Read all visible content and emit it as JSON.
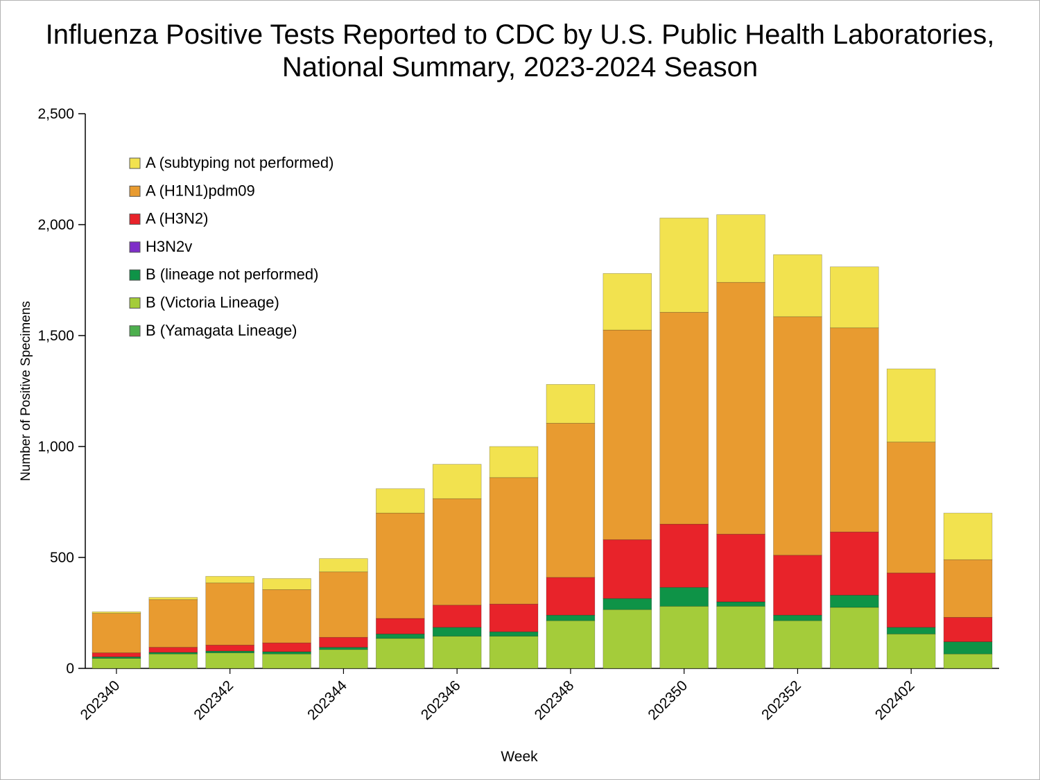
{
  "page": {
    "background": "#ffffff",
    "frame_border_color": "#b3b3b3",
    "axis_color": "#000000",
    "text_color": "#000000"
  },
  "title_lines": [
    "Influenza Positive Tests Reported to CDC by U.S. Public Health Laboratories,",
    "National Summary, 2023-2024 Season"
  ],
  "chart_data": {
    "type": "bar",
    "stacked": true,
    "title": "Influenza Positive Tests Reported to CDC by U.S. Public Health Laboratories, National Summary, 2023-2024 Season",
    "xlabel": "Week",
    "ylabel": "Number of Positive Specimens",
    "ylim": [
      0,
      2500
    ],
    "yticks": [
      0,
      500,
      1000,
      1500,
      2000,
      2500
    ],
    "ytick_labels": [
      "0",
      "500",
      "1,000",
      "1,500",
      "2,000",
      "2,500"
    ],
    "grid": false,
    "legend_position": "upper-left-inside",
    "categories": [
      "202340",
      "202341",
      "202342",
      "202343",
      "202344",
      "202345",
      "202346",
      "202347",
      "202348",
      "202349",
      "202350",
      "202351",
      "202352",
      "202401",
      "202402",
      "202403"
    ],
    "xtick_labels": [
      "202340",
      "202342",
      "202344",
      "202346",
      "202348",
      "202350",
      "202352",
      "202402"
    ],
    "series": [
      {
        "name": "B (Yamagata Lineage)",
        "color": "#4DAF4E",
        "values": [
          0,
          0,
          0,
          0,
          0,
          0,
          0,
          0,
          0,
          0,
          0,
          0,
          0,
          0,
          0,
          0
        ]
      },
      {
        "name": "B (Victoria Lineage)",
        "color": "#A4CC3A",
        "values": [
          45,
          65,
          70,
          65,
          85,
          135,
          145,
          145,
          215,
          265,
          280,
          280,
          215,
          275,
          155,
          65
        ]
      },
      {
        "name": "B (lineage not performed)",
        "color": "#0E9347",
        "values": [
          7,
          7,
          8,
          10,
          10,
          20,
          40,
          20,
          25,
          50,
          85,
          20,
          25,
          55,
          30,
          55
        ]
      },
      {
        "name": "H3N2v",
        "color": "#7E2EC8",
        "values": [
          0,
          0,
          0,
          0,
          0,
          0,
          0,
          0,
          0,
          0,
          0,
          0,
          0,
          0,
          0,
          0
        ]
      },
      {
        "name": "A (H3N2)",
        "color": "#E8232A",
        "values": [
          18,
          23,
          27,
          40,
          45,
          70,
          100,
          125,
          170,
          265,
          285,
          305,
          270,
          285,
          245,
          110
        ]
      },
      {
        "name": "A (H1N1)pdm09",
        "color": "#E89B30",
        "values": [
          178,
          215,
          280,
          240,
          295,
          475,
          480,
          570,
          695,
          945,
          955,
          1135,
          1075,
          920,
          590,
          260
        ]
      },
      {
        "name": "A (subtyping not performed)",
        "color": "#F2E24F",
        "values": [
          7,
          10,
          30,
          50,
          60,
          110,
          155,
          140,
          175,
          255,
          425,
          305,
          280,
          275,
          330,
          210
        ]
      }
    ],
    "legend_order": [
      "A (subtyping not performed)",
      "A (H1N1)pdm09",
      "A (H3N2)",
      "H3N2v",
      "B (lineage not performed)",
      "B (Victoria Lineage)",
      "B (Yamagata Lineage)"
    ]
  }
}
